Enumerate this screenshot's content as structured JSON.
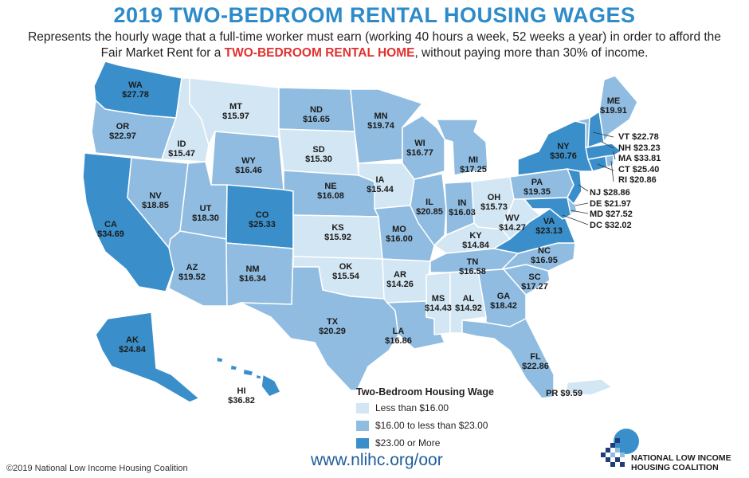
{
  "header": {
    "title": "2019 TWO-BEDROOM RENTAL HOUSING WAGES",
    "subtitle_part1": "Represents the hourly wage that a full-time worker must earn (working 40 hours a week, 52 weeks a year) in order to afford the Fair Market Rent for a ",
    "subtitle_highlight": "TWO-BEDROOM RENTAL HOME",
    "subtitle_part2": ", without paying more than 30% of income."
  },
  "colors": {
    "low": "#d3e6f3",
    "mid": "#8fbce0",
    "high": "#3a8fcb",
    "title": "#2e8bc9",
    "highlight": "#e2302f"
  },
  "states": [
    {
      "abbr": "WA",
      "wage": "$27.78",
      "tier": "high"
    },
    {
      "abbr": "OR",
      "wage": "$22.97",
      "tier": "mid"
    },
    {
      "abbr": "CA",
      "wage": "$34.69",
      "tier": "high"
    },
    {
      "abbr": "ID",
      "wage": "$15.47",
      "tier": "low"
    },
    {
      "abbr": "NV",
      "wage": "$18.85",
      "tier": "mid"
    },
    {
      "abbr": "MT",
      "wage": "$15.97",
      "tier": "low"
    },
    {
      "abbr": "WY",
      "wage": "$16.46",
      "tier": "mid"
    },
    {
      "abbr": "UT",
      "wage": "$18.30",
      "tier": "mid"
    },
    {
      "abbr": "AZ",
      "wage": "$19.52",
      "tier": "mid"
    },
    {
      "abbr": "CO",
      "wage": "$25.33",
      "tier": "high"
    },
    {
      "abbr": "NM",
      "wage": "$16.34",
      "tier": "mid"
    },
    {
      "abbr": "ND",
      "wage": "$16.65",
      "tier": "mid"
    },
    {
      "abbr": "SD",
      "wage": "$15.30",
      "tier": "low"
    },
    {
      "abbr": "NE",
      "wage": "$16.08",
      "tier": "mid"
    },
    {
      "abbr": "KS",
      "wage": "$15.92",
      "tier": "low"
    },
    {
      "abbr": "OK",
      "wage": "$15.54",
      "tier": "low"
    },
    {
      "abbr": "TX",
      "wage": "$20.29",
      "tier": "mid"
    },
    {
      "abbr": "MN",
      "wage": "$19.74",
      "tier": "mid"
    },
    {
      "abbr": "IA",
      "wage": "$15.44",
      "tier": "low"
    },
    {
      "abbr": "MO",
      "wage": "$16.00",
      "tier": "mid"
    },
    {
      "abbr": "AR",
      "wage": "$14.26",
      "tier": "low"
    },
    {
      "abbr": "LA",
      "wage": "$16.86",
      "tier": "mid"
    },
    {
      "abbr": "WI",
      "wage": "$16.77",
      "tier": "mid"
    },
    {
      "abbr": "IL",
      "wage": "$20.85",
      "tier": "mid"
    },
    {
      "abbr": "MI",
      "wage": "$17.25",
      "tier": "mid"
    },
    {
      "abbr": "IN",
      "wage": "$16.03",
      "tier": "mid"
    },
    {
      "abbr": "OH",
      "wage": "$15.73",
      "tier": "low"
    },
    {
      "abbr": "KY",
      "wage": "$14.84",
      "tier": "low"
    },
    {
      "abbr": "TN",
      "wage": "$16.58",
      "tier": "mid"
    },
    {
      "abbr": "MS",
      "wage": "$14.43",
      "tier": "low"
    },
    {
      "abbr": "AL",
      "wage": "$14.92",
      "tier": "low"
    },
    {
      "abbr": "GA",
      "wage": "$18.42",
      "tier": "mid"
    },
    {
      "abbr": "FL",
      "wage": "$22.86",
      "tier": "mid"
    },
    {
      "abbr": "SC",
      "wage": "$17.27",
      "tier": "mid"
    },
    {
      "abbr": "NC",
      "wage": "$16.95",
      "tier": "mid"
    },
    {
      "abbr": "VA",
      "wage": "$23.13",
      "tier": "high"
    },
    {
      "abbr": "WV",
      "wage": "$14.27",
      "tier": "low"
    },
    {
      "abbr": "PA",
      "wage": "$19.35",
      "tier": "mid"
    },
    {
      "abbr": "NY",
      "wage": "$30.76",
      "tier": "high"
    },
    {
      "abbr": "ME",
      "wage": "$19.91",
      "tier": "mid"
    },
    {
      "abbr": "AK",
      "wage": "$24.84",
      "tier": "high"
    },
    {
      "abbr": "HI",
      "wage": "$36.82",
      "tier": "high"
    },
    {
      "abbr": "PR",
      "wage": "$9.59",
      "tier": "low"
    }
  ],
  "northeast_callouts": [
    {
      "abbr": "VT",
      "wage": "$22.78",
      "tier": "mid"
    },
    {
      "abbr": "NH",
      "wage": "$23.23",
      "tier": "high"
    },
    {
      "abbr": "MA",
      "wage": "$33.81",
      "tier": "high"
    },
    {
      "abbr": "CT",
      "wage": "$25.40",
      "tier": "high"
    },
    {
      "abbr": "RI",
      "wage": "$20.86",
      "tier": "mid"
    }
  ],
  "midatlantic_callouts": [
    {
      "abbr": "NJ",
      "wage": "$28.86",
      "tier": "high"
    },
    {
      "abbr": "DE",
      "wage": "$21.97",
      "tier": "mid"
    },
    {
      "abbr": "MD",
      "wage": "$27.52",
      "tier": "high"
    },
    {
      "abbr": "DC",
      "wage": "$32.02",
      "tier": "high"
    }
  ],
  "legend": {
    "title": "Two-Bedroom Housing Wage",
    "items": [
      {
        "label": "Less than $16.00",
        "tier": "low"
      },
      {
        "label": "$16.00 to less than $23.00",
        "tier": "mid"
      },
      {
        "label": "$23.00 or More",
        "tier": "high"
      }
    ]
  },
  "footer": {
    "copyright": "©2019 National Low Income Housing Coalition",
    "url": "www.nlihc.org/oor",
    "org_line1": "NATIONAL LOW INCOME",
    "org_line2": "HOUSING COALITION"
  }
}
